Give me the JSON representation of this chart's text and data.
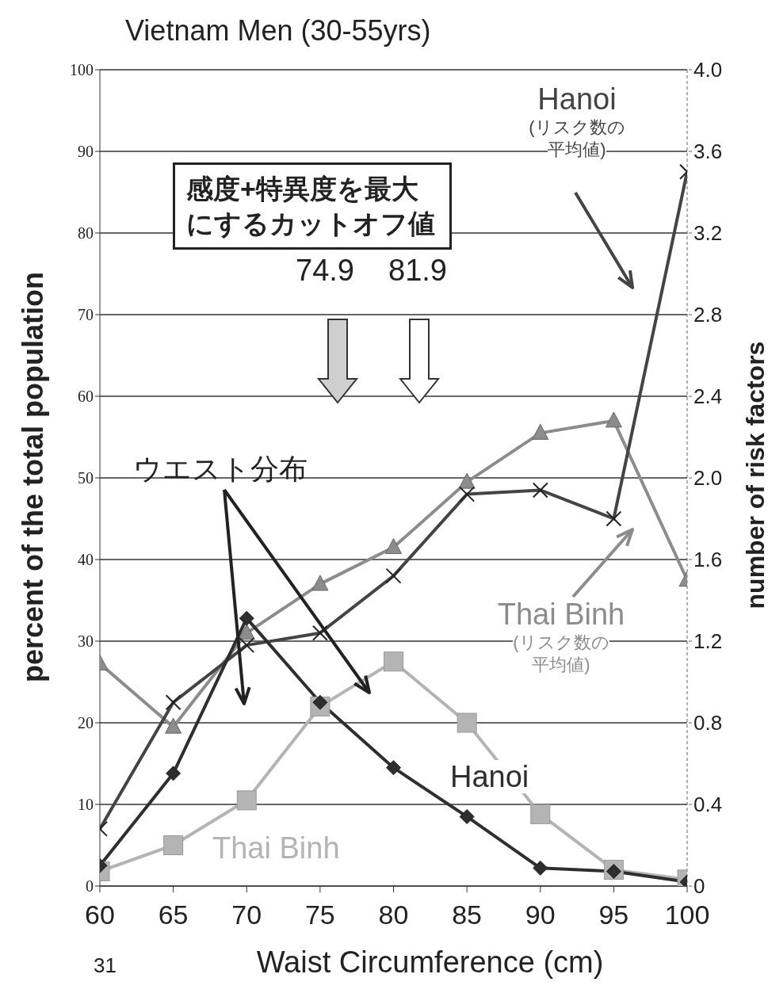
{
  "chart_data": {
    "type": "line",
    "title": "Vietnam  Men (30-55yrs)",
    "xlabel": "Waist Circumference (cm)",
    "ylabel": "percent of the total population",
    "y2label": "number of risk factors",
    "annotations": [
      "感度+特異度を最大にするカットオフ値",
      "74.9",
      "81.9",
      "ウエスト分布",
      "31"
    ],
    "x": [
      60,
      65,
      70,
      75,
      80,
      85,
      90,
      95,
      100
    ],
    "series": [
      {
        "name": "Hanoi",
        "color": "#2e2e2e",
        "marker": "diamond",
        "values": [
          2.5,
          13.8,
          32.8,
          22.5,
          14.5,
          8.5,
          2.2,
          1.8,
          0.5
        ]
      },
      {
        "name": "Thai Binh",
        "color": "#b4b4b4",
        "marker": "square",
        "values": [
          1.8,
          5,
          10.5,
          22,
          27.5,
          20,
          8.8,
          2,
          0.8
        ]
      },
      {
        "name": "Hanoi (リスク数の平均値)",
        "color": "#444444",
        "marker": "cross",
        "axis": "y2",
        "values": [
          0.28,
          0.9,
          1.18,
          1.24,
          1.52,
          1.92,
          1.94,
          1.8,
          3.5
        ]
      },
      {
        "name": "Thai Binh (リスク数の平均値)",
        "color": "#8c8c8c",
        "marker": "triangle",
        "axis": "y2",
        "values": [
          1.09,
          0.78,
          1.24,
          1.48,
          1.66,
          1.98,
          2.22,
          2.28,
          1.5
        ]
      }
    ],
    "xlim": [
      60,
      100
    ],
    "xticks": [
      60,
      65,
      70,
      75,
      80,
      85,
      90,
      95,
      100
    ],
    "ylim": [
      0,
      100
    ],
    "yticks": [
      0,
      10,
      20,
      30,
      40,
      50,
      60,
      70,
      80,
      90,
      100
    ],
    "y2lim": [
      0,
      4
    ],
    "y2ticks": [
      0,
      {
        "value": 0.4,
        "label": "0.4"
      },
      {
        "value": 0.8,
        "label": "0.8"
      },
      {
        "value": 1.2,
        "label": "1.2"
      },
      {
        "value": 1.6,
        "label": "1.6"
      },
      {
        "value": 2,
        "label": "2.0"
      },
      {
        "value": 2.4,
        "label": "2.4"
      },
      {
        "value": 2.8,
        "label": "2.8"
      },
      {
        "value": 3.2,
        "label": "3.2"
      },
      {
        "value": 3.6,
        "label": "3.6"
      },
      {
        "value": 4,
        "label": "4.0"
      }
    ],
    "grid": "y"
  }
}
